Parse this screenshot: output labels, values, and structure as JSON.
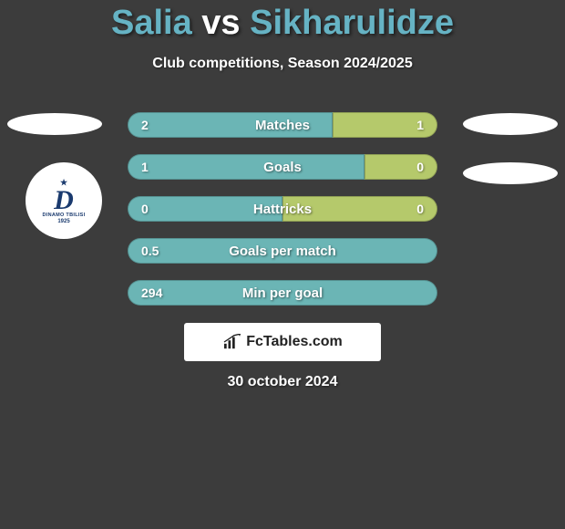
{
  "title": {
    "player1": "Salia",
    "vs": "vs",
    "player2": "Sikharulidze"
  },
  "subtitle": "Club competitions, Season 2024/2025",
  "bars": [
    {
      "label": "Matches",
      "left_val": "2",
      "right_val": "1",
      "left_width": 225,
      "right_width": 115,
      "left_color": "#6bb5b5",
      "right_color": "#b5c96b"
    },
    {
      "label": "Goals",
      "left_val": "1",
      "right_val": "0",
      "left_width": 260,
      "right_width": 80,
      "left_color": "#6bb5b5",
      "right_color": "#b5c96b"
    },
    {
      "label": "Hattricks",
      "left_val": "0",
      "right_val": "0",
      "left_width": 170,
      "right_width": 170,
      "left_color": "#6bb5b5",
      "right_color": "#b5c96b"
    },
    {
      "label": "Goals per match",
      "left_val": "0.5",
      "right_val": "",
      "left_width": 340,
      "right_width": 0,
      "left_color": "#6bb5b5",
      "right_color": "#b5c96b"
    },
    {
      "label": "Min per goal",
      "left_val": "294",
      "right_val": "",
      "left_width": 340,
      "right_width": 0,
      "left_color": "#6bb5b5",
      "right_color": "#b5c96b"
    }
  ],
  "club_logo": {
    "name": "DINAMO TBILISI",
    "year": "1925"
  },
  "brand": "FcTables.com",
  "date": "30 october 2024",
  "colors": {
    "background": "#3c3c3c",
    "accent": "#66b3c4"
  }
}
